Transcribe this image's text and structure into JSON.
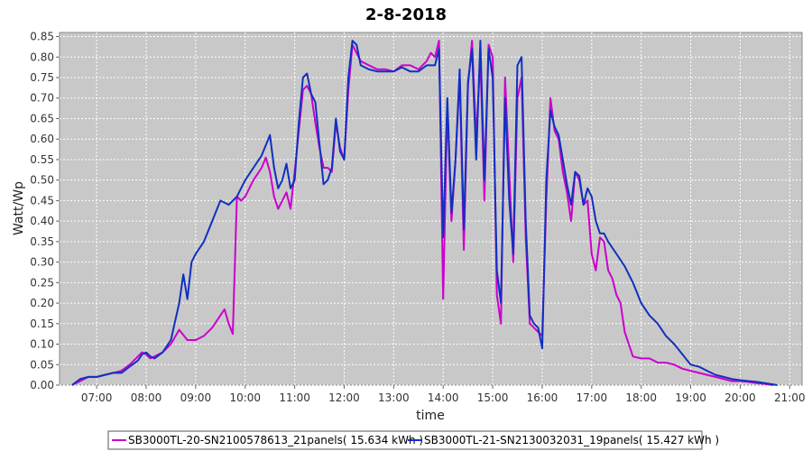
{
  "chart_data": {
    "type": "line",
    "title": "2-8-2018",
    "xlabel": "time",
    "ylabel": "Watt/Wp",
    "xlim": [
      "06:15",
      "21:15"
    ],
    "ylim": [
      0,
      0.86
    ],
    "x_ticks": [
      "07:00",
      "08:00",
      "09:00",
      "10:00",
      "11:00",
      "12:00",
      "13:00",
      "14:00",
      "15:00",
      "16:00",
      "17:00",
      "18:00",
      "19:00",
      "20:00",
      "21:00"
    ],
    "y_ticks": [
      "0.00",
      "0.05",
      "0.10",
      "0.15",
      "0.20",
      "0.25",
      "0.30",
      "0.35",
      "0.40",
      "0.45",
      "0.50",
      "0.55",
      "0.60",
      "0.65",
      "0.70",
      "0.75",
      "0.80",
      "0.85"
    ],
    "grid": true,
    "legend_position": "bottom",
    "series": [
      {
        "name": "SB3000TL-20-SN2100578613_21panels( 15.634 kWh )",
        "color": "#cc00cc",
        "points": [
          [
            "06:30",
            0.0
          ],
          [
            "06:40",
            0.01
          ],
          [
            "06:50",
            0.02
          ],
          [
            "07:00",
            0.02
          ],
          [
            "07:10",
            0.025
          ],
          [
            "07:20",
            0.03
          ],
          [
            "07:30",
            0.035
          ],
          [
            "07:40",
            0.05
          ],
          [
            "07:50",
            0.07
          ],
          [
            "07:55",
            0.08
          ],
          [
            "08:00",
            0.075
          ],
          [
            "08:05",
            0.065
          ],
          [
            "08:10",
            0.07
          ],
          [
            "08:20",
            0.08
          ],
          [
            "08:30",
            0.1
          ],
          [
            "08:40",
            0.135
          ],
          [
            "08:50",
            0.11
          ],
          [
            "09:00",
            0.11
          ],
          [
            "09:10",
            0.12
          ],
          [
            "09:20",
            0.14
          ],
          [
            "09:30",
            0.17
          ],
          [
            "09:35",
            0.185
          ],
          [
            "09:40",
            0.15
          ],
          [
            "09:45",
            0.125
          ],
          [
            "09:50",
            0.46
          ],
          [
            "09:55",
            0.45
          ],
          [
            "10:00",
            0.46
          ],
          [
            "10:10",
            0.5
          ],
          [
            "10:20",
            0.53
          ],
          [
            "10:25",
            0.555
          ],
          [
            "10:30",
            0.52
          ],
          [
            "10:35",
            0.46
          ],
          [
            "10:40",
            0.43
          ],
          [
            "10:45",
            0.45
          ],
          [
            "10:50",
            0.47
          ],
          [
            "10:55",
            0.43
          ],
          [
            "11:00",
            0.52
          ],
          [
            "11:05",
            0.62
          ],
          [
            "11:10",
            0.72
          ],
          [
            "11:15",
            0.73
          ],
          [
            "11:20",
            0.71
          ],
          [
            "11:25",
            0.64
          ],
          [
            "11:30",
            0.58
          ],
          [
            "11:35",
            0.53
          ],
          [
            "11:40",
            0.53
          ],
          [
            "11:45",
            0.52
          ],
          [
            "11:50",
            0.64
          ],
          [
            "11:55",
            0.58
          ],
          [
            "12:00",
            0.55
          ],
          [
            "12:05",
            0.72
          ],
          [
            "12:10",
            0.83
          ],
          [
            "12:15",
            0.81
          ],
          [
            "12:20",
            0.79
          ],
          [
            "12:30",
            0.78
          ],
          [
            "12:40",
            0.77
          ],
          [
            "12:50",
            0.77
          ],
          [
            "13:00",
            0.765
          ],
          [
            "13:10",
            0.78
          ],
          [
            "13:20",
            0.78
          ],
          [
            "13:30",
            0.77
          ],
          [
            "13:40",
            0.79
          ],
          [
            "13:45",
            0.81
          ],
          [
            "13:50",
            0.8
          ],
          [
            "13:55",
            0.84
          ],
          [
            "14:00",
            0.21
          ],
          [
            "14:05",
            0.68
          ],
          [
            "14:10",
            0.4
          ],
          [
            "14:15",
            0.55
          ],
          [
            "14:20",
            0.75
          ],
          [
            "14:25",
            0.33
          ],
          [
            "14:30",
            0.73
          ],
          [
            "14:35",
            0.84
          ],
          [
            "14:40",
            0.6
          ],
          [
            "14:45",
            0.8
          ],
          [
            "14:50",
            0.45
          ],
          [
            "14:55",
            0.83
          ],
          [
            "15:00",
            0.8
          ],
          [
            "15:05",
            0.22
          ],
          [
            "15:10",
            0.15
          ],
          [
            "15:15",
            0.75
          ],
          [
            "15:20",
            0.52
          ],
          [
            "15:25",
            0.3
          ],
          [
            "15:30",
            0.7
          ],
          [
            "15:35",
            0.75
          ],
          [
            "15:40",
            0.36
          ],
          [
            "15:45",
            0.15
          ],
          [
            "15:50",
            0.14
          ],
          [
            "15:55",
            0.13
          ],
          [
            "16:00",
            0.12
          ],
          [
            "16:05",
            0.45
          ],
          [
            "16:10",
            0.7
          ],
          [
            "16:15",
            0.62
          ],
          [
            "16:20",
            0.6
          ],
          [
            "16:25",
            0.52
          ],
          [
            "16:30",
            0.47
          ],
          [
            "16:35",
            0.4
          ],
          [
            "16:40",
            0.52
          ],
          [
            "16:45",
            0.5
          ],
          [
            "16:50",
            0.44
          ],
          [
            "16:55",
            0.45
          ],
          [
            "17:00",
            0.32
          ],
          [
            "17:05",
            0.28
          ],
          [
            "17:10",
            0.36
          ],
          [
            "17:15",
            0.35
          ],
          [
            "17:20",
            0.28
          ],
          [
            "17:25",
            0.26
          ],
          [
            "17:30",
            0.22
          ],
          [
            "17:35",
            0.2
          ],
          [
            "17:40",
            0.13
          ],
          [
            "17:50",
            0.07
          ],
          [
            "18:00",
            0.065
          ],
          [
            "18:10",
            0.065
          ],
          [
            "18:20",
            0.055
          ],
          [
            "18:30",
            0.055
          ],
          [
            "18:40",
            0.05
          ],
          [
            "18:50",
            0.04
          ],
          [
            "19:00",
            0.035
          ],
          [
            "19:10",
            0.03
          ],
          [
            "19:20",
            0.025
          ],
          [
            "19:30",
            0.02
          ],
          [
            "19:40",
            0.015
          ],
          [
            "19:50",
            0.01
          ],
          [
            "20:00",
            0.01
          ],
          [
            "20:10",
            0.008
          ],
          [
            "20:20",
            0.005
          ],
          [
            "20:30",
            0.003
          ],
          [
            "20:40",
            0.0
          ]
        ]
      },
      {
        "name": "SB3000TL-21-SN2130032031_19panels( 15.427 kWh )",
        "color": "#1030c0",
        "points": [
          [
            "06:30",
            0.0
          ],
          [
            "06:40",
            0.015
          ],
          [
            "06:50",
            0.02
          ],
          [
            "07:00",
            0.02
          ],
          [
            "07:10",
            0.025
          ],
          [
            "07:20",
            0.03
          ],
          [
            "07:30",
            0.03
          ],
          [
            "07:40",
            0.045
          ],
          [
            "07:50",
            0.06
          ],
          [
            "07:55",
            0.075
          ],
          [
            "08:00",
            0.08
          ],
          [
            "08:05",
            0.07
          ],
          [
            "08:10",
            0.065
          ],
          [
            "08:20",
            0.08
          ],
          [
            "08:30",
            0.11
          ],
          [
            "08:40",
            0.2
          ],
          [
            "08:45",
            0.27
          ],
          [
            "08:50",
            0.21
          ],
          [
            "08:55",
            0.3
          ],
          [
            "09:00",
            0.32
          ],
          [
            "09:10",
            0.35
          ],
          [
            "09:20",
            0.4
          ],
          [
            "09:30",
            0.45
          ],
          [
            "09:40",
            0.44
          ],
          [
            "09:50",
            0.46
          ],
          [
            "10:00",
            0.5
          ],
          [
            "10:10",
            0.53
          ],
          [
            "10:20",
            0.56
          ],
          [
            "10:30",
            0.61
          ],
          [
            "10:35",
            0.53
          ],
          [
            "10:40",
            0.48
          ],
          [
            "10:45",
            0.5
          ],
          [
            "10:50",
            0.54
          ],
          [
            "10:55",
            0.48
          ],
          [
            "11:00",
            0.5
          ],
          [
            "11:05",
            0.64
          ],
          [
            "11:10",
            0.75
          ],
          [
            "11:15",
            0.76
          ],
          [
            "11:20",
            0.71
          ],
          [
            "11:25",
            0.69
          ],
          [
            "11:30",
            0.59
          ],
          [
            "11:35",
            0.49
          ],
          [
            "11:40",
            0.5
          ],
          [
            "11:45",
            0.53
          ],
          [
            "11:50",
            0.65
          ],
          [
            "11:55",
            0.57
          ],
          [
            "12:00",
            0.55
          ],
          [
            "12:05",
            0.75
          ],
          [
            "12:10",
            0.84
          ],
          [
            "12:15",
            0.83
          ],
          [
            "12:20",
            0.78
          ],
          [
            "12:30",
            0.77
          ],
          [
            "12:40",
            0.765
          ],
          [
            "12:50",
            0.765
          ],
          [
            "13:00",
            0.765
          ],
          [
            "13:10",
            0.775
          ],
          [
            "13:20",
            0.765
          ],
          [
            "13:30",
            0.765
          ],
          [
            "13:40",
            0.78
          ],
          [
            "13:45",
            0.78
          ],
          [
            "13:50",
            0.78
          ],
          [
            "13:55",
            0.82
          ],
          [
            "14:00",
            0.36
          ],
          [
            "14:05",
            0.7
          ],
          [
            "14:10",
            0.42
          ],
          [
            "14:15",
            0.55
          ],
          [
            "14:20",
            0.77
          ],
          [
            "14:25",
            0.38
          ],
          [
            "14:30",
            0.74
          ],
          [
            "14:35",
            0.82
          ],
          [
            "14:40",
            0.55
          ],
          [
            "14:45",
            0.84
          ],
          [
            "14:50",
            0.5
          ],
          [
            "14:55",
            0.82
          ],
          [
            "15:00",
            0.75
          ],
          [
            "15:05",
            0.28
          ],
          [
            "15:10",
            0.2
          ],
          [
            "15:15",
            0.7
          ],
          [
            "15:20",
            0.45
          ],
          [
            "15:25",
            0.32
          ],
          [
            "15:30",
            0.78
          ],
          [
            "15:35",
            0.8
          ],
          [
            "15:40",
            0.4
          ],
          [
            "15:45",
            0.17
          ],
          [
            "15:50",
            0.15
          ],
          [
            "15:55",
            0.14
          ],
          [
            "16:00",
            0.09
          ],
          [
            "16:05",
            0.5
          ],
          [
            "16:10",
            0.67
          ],
          [
            "16:15",
            0.63
          ],
          [
            "16:20",
            0.61
          ],
          [
            "16:25",
            0.55
          ],
          [
            "16:30",
            0.49
          ],
          [
            "16:35",
            0.44
          ],
          [
            "16:40",
            0.52
          ],
          [
            "16:45",
            0.51
          ],
          [
            "16:50",
            0.44
          ],
          [
            "16:55",
            0.48
          ],
          [
            "17:00",
            0.46
          ],
          [
            "17:05",
            0.4
          ],
          [
            "17:10",
            0.37
          ],
          [
            "17:15",
            0.37
          ],
          [
            "17:20",
            0.35
          ],
          [
            "17:30",
            0.32
          ],
          [
            "17:40",
            0.29
          ],
          [
            "17:50",
            0.25
          ],
          [
            "18:00",
            0.2
          ],
          [
            "18:10",
            0.17
          ],
          [
            "18:20",
            0.15
          ],
          [
            "18:30",
            0.12
          ],
          [
            "18:40",
            0.1
          ],
          [
            "18:50",
            0.075
          ],
          [
            "19:00",
            0.05
          ],
          [
            "19:10",
            0.045
          ],
          [
            "19:20",
            0.035
          ],
          [
            "19:30",
            0.025
          ],
          [
            "19:40",
            0.02
          ],
          [
            "19:50",
            0.015
          ],
          [
            "20:00",
            0.012
          ],
          [
            "20:10",
            0.01
          ],
          [
            "20:20",
            0.008
          ],
          [
            "20:30",
            0.005
          ],
          [
            "20:45",
            0.0
          ]
        ]
      }
    ]
  }
}
